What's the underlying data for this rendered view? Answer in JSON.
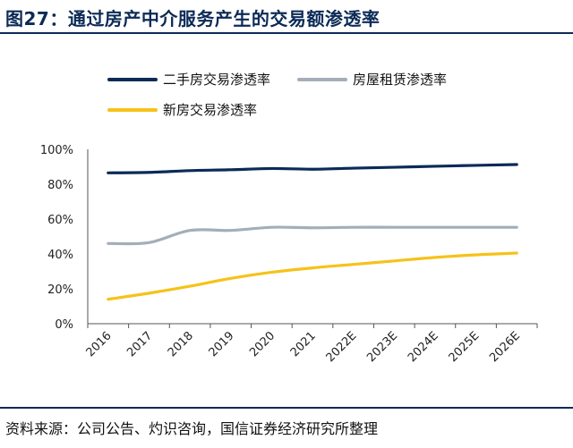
{
  "figure": {
    "title": "图27：通过房产中介服务产生的交易额渗透率",
    "source": "资料来源：公司公告、灼识咨询，国信证券经济研究所整理"
  },
  "chart_data": {
    "type": "line",
    "x": [
      "2016",
      "2017",
      "2018",
      "2019",
      "2020",
      "2021",
      "2022E",
      "2023E",
      "2024E",
      "2025E",
      "2026E"
    ],
    "ylim": [
      0,
      100
    ],
    "yticks": [
      "0%",
      "20%",
      "40%",
      "60%",
      "80%",
      "100%"
    ],
    "grid": false,
    "legend_position": "top",
    "series": [
      {
        "name": "二手房交易渗透率",
        "color": "#0b2a56",
        "values": [
          86.5,
          86.8,
          87.8,
          88.3,
          89.0,
          88.6,
          89.2,
          89.7,
          90.3,
          90.8,
          91.3
        ]
      },
      {
        "name": "房屋租赁渗透率",
        "color": "#a3aeb9",
        "values": [
          46,
          46.5,
          53.5,
          53.5,
          55.3,
          55.0,
          55.3,
          55.3,
          55.3,
          55.3,
          55.3
        ]
      },
      {
        "name": "新房交易渗透率",
        "color": "#f6c21a",
        "values": [
          14,
          17.5,
          21.5,
          26,
          29.5,
          32,
          34,
          36,
          38,
          39.5,
          40.5
        ]
      }
    ]
  }
}
